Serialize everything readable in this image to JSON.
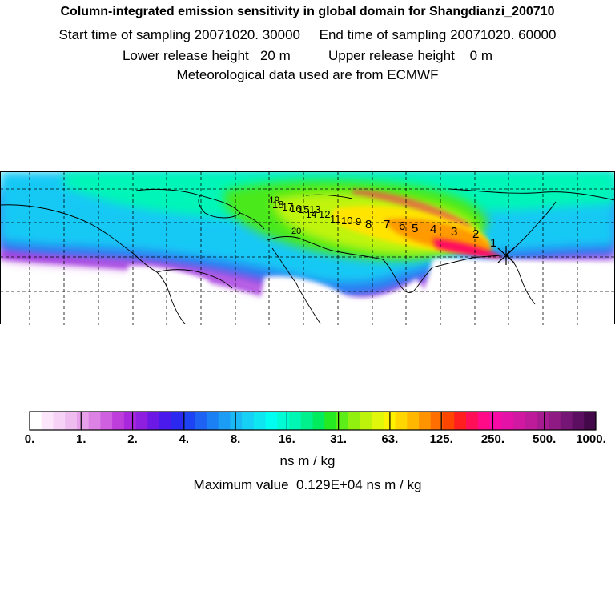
{
  "header": {
    "title": "Column-integrated emission sensitivity in global domain for Shangdianzi_200710",
    "line1": "Start time of sampling 20071020. 30000     End time of sampling 20071020. 60000",
    "line2": "Lower release height   20 m          Upper release height    0 m",
    "line3": "Meteorological data used are from ECMWF"
  },
  "colorbar": {
    "tick_labels": [
      "0.",
      "1.",
      "2.",
      "4.",
      "8.",
      "16.",
      "31.",
      "63.",
      "125.",
      "250.",
      "500.",
      "1000."
    ],
    "units": "ns m / kg",
    "colors": [
      "#ffffff",
      "#fbe6fb",
      "#f6d3f6",
      "#efbcf0",
      "#e7a1ea",
      "#dd82e5",
      "#cf60e0",
      "#be3edc",
      "#a927dd",
      "#8f1fe0",
      "#6d19e6",
      "#4a1aec",
      "#2b28ef",
      "#1d43f2",
      "#1d62f3",
      "#1b80f4",
      "#1b9cf5",
      "#1bb8f6",
      "#16d0f5",
      "#0ee6f2",
      "#00fff0",
      "#00fbd4",
      "#00f6b3",
      "#00f08e",
      "#00eb5e",
      "#25ea22",
      "#5ded18",
      "#92f010",
      "#bdf30b",
      "#e0f60a",
      "#fff200",
      "#ffd600",
      "#ffb700",
      "#ff9400",
      "#ff6e00",
      "#ff4600",
      "#ff1f1f",
      "#ff0f57",
      "#ff0a87",
      "#f70aa6",
      "#e512a8",
      "#d118a0",
      "#bd1b99",
      "#a61c90",
      "#8f1a84",
      "#761674",
      "#5c0f60",
      "#420848"
    ]
  },
  "map": {
    "release_site": "Shangdianzi",
    "trajectory_labels": [
      "1",
      "2",
      "3",
      "4",
      "5",
      "6",
      "7",
      "8",
      "9",
      "10",
      "11",
      "12",
      "13",
      "14",
      "15",
      "16",
      "17",
      "18",
      "19",
      "20"
    ]
  },
  "footer": {
    "max_value": "Maximum value  0.129E+04 ns m / kg"
  }
}
